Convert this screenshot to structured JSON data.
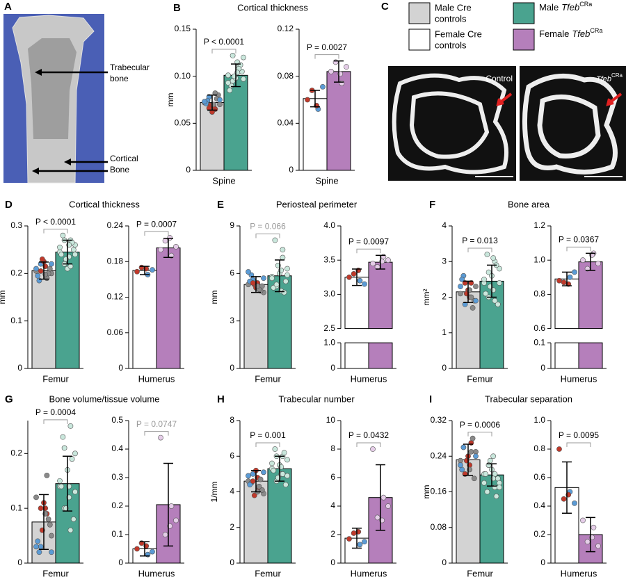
{
  "panel_a": {
    "letter": "A",
    "label_top": [
      "Trabecular",
      "bone"
    ],
    "label_bottom": [
      "Cortical",
      "Bone"
    ]
  },
  "panel_c": {
    "letter": "C",
    "legend": [
      {
        "color": "#d3d3d3",
        "lines": [
          "Male Cre",
          "controls"
        ]
      },
      {
        "color": "#4aa38f",
        "prefix": "Male",
        "gene": "Tfeb",
        "sup": "CRa"
      },
      {
        "color": "#ffffff",
        "lines": [
          "Female Cre",
          "controls"
        ]
      },
      {
        "color": "#b57fbb",
        "prefix": "Female",
        "gene": "Tfeb",
        "sup": "CRa"
      }
    ],
    "image_left_label": "Control",
    "image_right_gene": "Tfeb",
    "image_right_sup": "CRa"
  },
  "chart_data": [
    {
      "type": "bar",
      "letter": "B",
      "title": "Cortical thickness",
      "ylabel": "mm",
      "xlabel": "Spine",
      "pvalue": "P < 0.0001",
      "pvalue_color": "#000",
      "ylim": [
        0,
        0.15
      ],
      "yticks": [
        0,
        0.05,
        {
          "value": 0.1,
          "label": "0.10"
        },
        0.15
      ],
      "values": [
        0.072,
        0.101
      ],
      "errors": [
        0.008,
        0.012
      ],
      "colors": [
        "#d3d3d3",
        "#4aa38f"
      ],
      "dot_colors": [
        [
          "#8a8a8a",
          "#c0392b",
          "#5b9bd5"
        ],
        [
          "#c9e7dc"
        ]
      ],
      "points": [
        [
          0.072,
          0.065,
          0.078,
          0.07,
          0.068,
          0.074,
          0.08,
          0.062,
          0.071,
          0.076,
          0.069,
          0.073,
          0.082,
          0.066,
          0.075,
          0.07
        ],
        [
          0.101,
          0.11,
          0.095,
          0.12,
          0.115,
          0.09,
          0.105,
          0.098,
          0.085,
          0.112,
          0.1,
          0.093,
          0.108,
          0.122,
          0.097,
          0.104
        ]
      ]
    },
    {
      "type": "bar",
      "xlabel": "Spine",
      "pvalue": "P = 0.0027",
      "pvalue_color": "#000",
      "ylim": [
        0,
        0.12
      ],
      "yticks": [
        0,
        0.04,
        0.08,
        0.12
      ],
      "values": [
        0.061,
        0.084
      ],
      "errors": [
        0.007,
        0.009
      ],
      "colors": [
        "#ffffff",
        "#b57fbb"
      ],
      "dot_colors": [
        [
          "#c0392b",
          "#5b9bd5"
        ],
        [
          "#e5cde8"
        ]
      ],
      "points": [
        [
          0.06,
          0.052,
          0.068,
          0.071,
          0.055
        ],
        [
          0.084,
          0.074,
          0.092,
          0.088,
          0.082
        ]
      ]
    },
    {
      "type": "bar",
      "letter": "D",
      "title": "Cortical thickness",
      "ylabel": "mm",
      "xlabel": "Femur",
      "pvalue": "P < 0.0001",
      "pvalue_color": "#000",
      "ylim": [
        0,
        0.3
      ],
      "yticks": [
        0,
        0.1,
        0.2,
        0.3
      ],
      "values": [
        0.206,
        0.245
      ],
      "errors": [
        0.018,
        0.025
      ],
      "colors": [
        "#d3d3d3",
        "#4aa38f"
      ],
      "dot_colors": [
        [
          "#8a8a8a",
          "#c0392b",
          "#5b9bd5"
        ],
        [
          "#c9e7dc"
        ]
      ],
      "points": [
        [
          0.205,
          0.19,
          0.22,
          0.2,
          0.215,
          0.185,
          0.21,
          0.225,
          0.195,
          0.2,
          0.23,
          0.21,
          0.19,
          0.205,
          0.22,
          0.198
        ],
        [
          0.245,
          0.27,
          0.22,
          0.26,
          0.235,
          0.28,
          0.25,
          0.21,
          0.24,
          0.265,
          0.23,
          0.255,
          0.215,
          0.27,
          0.24,
          0.26
        ]
      ]
    },
    {
      "type": "bar",
      "xlabel": "Humerus",
      "pvalue": "P = 0.0007",
      "pvalue_color": "#000",
      "ylim": [
        0,
        0.24
      ],
      "yticks": [
        0,
        0.06,
        0.12,
        0.18,
        0.24
      ],
      "values": [
        0.165,
        0.203
      ],
      "errors": [
        0.007,
        0.016
      ],
      "colors": [
        "#ffffff",
        "#b57fbb"
      ],
      "dot_colors": [
        [
          "#c0392b",
          "#5b9bd5"
        ],
        [
          "#e5cde8"
        ]
      ],
      "points": [
        [
          0.163,
          0.158,
          0.17,
          0.166,
          0.168
        ],
        [
          0.2,
          0.19,
          0.215,
          0.205,
          0.22
        ]
      ]
    },
    {
      "type": "bar",
      "letter": "E",
      "title": "Periosteal perimeter",
      "ylabel": "mm",
      "xlabel": "Femur",
      "pvalue": "P = 0.066",
      "pvalue_color": "#999999",
      "ylim": [
        0,
        9
      ],
      "yticks": [
        0,
        3,
        6,
        9
      ],
      "values": [
        5.3,
        5.85
      ],
      "errors": [
        0.5,
        1.0
      ],
      "colors": [
        "#d3d3d3",
        "#4aa38f"
      ],
      "dot_colors": [
        [
          "#8a8a8a",
          "#c0392b",
          "#5b9bd5"
        ],
        [
          "#c9e7dc"
        ]
      ],
      "points": [
        [
          5.3,
          5.0,
          5.6,
          4.8,
          5.4,
          5.9,
          5.2,
          5.1,
          5.5,
          4.9,
          5.3,
          6.1,
          5.0,
          5.4,
          5.7,
          5.2
        ],
        [
          5.8,
          7.5,
          5.2,
          6.3,
          4.9,
          8.1,
          5.5,
          6.0,
          5.1,
          4.8,
          6.5,
          5.7,
          7.0,
          5.3,
          5.9,
          6.2
        ]
      ]
    },
    {
      "type": "bar",
      "broken_axis": true,
      "xlabel": "Humerus",
      "pvalue": "P = 0.0097",
      "pvalue_color": "#000",
      "ylim": [
        2.5,
        4.0
      ],
      "yticks": [
        2.5,
        {
          "value": 3.0,
          "label": "3.0"
        },
        3.5,
        {
          "value": 4.0,
          "label": "4.0"
        }
      ],
      "ylim_lower": [
        0,
        1.0
      ],
      "yticks_lower": [
        0,
        {
          "value": 1.0,
          "label": "1.0"
        }
      ],
      "values": [
        3.25,
        3.47
      ],
      "errors": [
        0.12,
        0.1
      ],
      "colors": [
        "#ffffff",
        "#b57fbb"
      ],
      "dot_colors": [
        [
          "#c0392b",
          "#5b9bd5"
        ],
        [
          "#e5cde8"
        ]
      ],
      "points": [
        [
          3.25,
          3.2,
          3.3,
          3.15,
          3.35
        ],
        [
          3.45,
          3.55,
          3.4,
          3.5,
          3.48
        ]
      ]
    },
    {
      "type": "bar",
      "letter": "F",
      "title": "Bone area",
      "ylabel": "mm²",
      "xlabel": "Femur",
      "pvalue": "P = 0.013",
      "pvalue_color": "#000",
      "ylim": [
        0,
        4
      ],
      "yticks": [
        0,
        1,
        2,
        3,
        4
      ],
      "values": [
        2.15,
        2.45
      ],
      "errors": [
        0.3,
        0.45
      ],
      "colors": [
        "#d3d3d3",
        "#4aa38f"
      ],
      "dot_colors": [
        [
          "#8a8a8a",
          "#c0392b",
          "#5b9bd5"
        ],
        [
          "#c9e7dc"
        ]
      ],
      "points": [
        [
          2.1,
          2.4,
          1.8,
          2.3,
          2.0,
          2.6,
          1.9,
          2.2,
          2.5,
          1.7,
          2.1,
          2.3,
          2.0,
          2.4,
          1.9,
          2.2
        ],
        [
          2.4,
          3.0,
          2.0,
          2.8,
          2.2,
          3.2,
          1.8,
          2.6,
          2.1,
          2.9,
          2.3,
          2.5,
          1.9,
          2.7,
          2.4,
          3.1
        ]
      ]
    },
    {
      "type": "bar",
      "broken_axis": true,
      "xlabel": "Humerus",
      "pvalue": "P = 0.0367",
      "pvalue_color": "#000",
      "ylim": [
        0.6,
        1.2
      ],
      "yticks": [
        0.6,
        0.8,
        {
          "value": 1.0,
          "label": "1.0"
        },
        1.2
      ],
      "ylim_lower": [
        0,
        0.1
      ],
      "yticks_lower": [
        0,
        0.1
      ],
      "values": [
        0.89,
        0.99
      ],
      "errors": [
        0.04,
        0.05
      ],
      "colors": [
        "#ffffff",
        "#b57fbb"
      ],
      "dot_colors": [
        [
          "#c0392b",
          "#5b9bd5"
        ],
        [
          "#e5cde8"
        ]
      ],
      "points": [
        [
          0.88,
          0.9,
          0.87,
          0.93,
          0.86
        ],
        [
          1.0,
          1.04,
          0.95,
          0.98,
          1.03
        ]
      ]
    },
    {
      "type": "bar",
      "letter": "G",
      "title": "Bone volume/tissue volume",
      "xlabel": "Femur",
      "pvalue": "P = 0.0004",
      "pvalue_color": "#000",
      "ylim": [
        0,
        0.26
      ],
      "yticks": [
        0,
        0.1,
        0.2
      ],
      "values": [
        0.075,
        0.145
      ],
      "errors": [
        0.05,
        0.05
      ],
      "colors": [
        "#d3d3d3",
        "#4aa38f"
      ],
      "dot_colors": [
        [
          "#8a8a8a",
          "#c0392b",
          "#5b9bd5"
        ],
        [
          "#c9e7dc"
        ]
      ],
      "points": [
        [
          0.12,
          0.09,
          0.03,
          0.05,
          0.1,
          0.02,
          0.07,
          0.11,
          0.04,
          0.08,
          0.06,
          0.03,
          0.16,
          0.1,
          0.02,
          0.09
        ],
        [
          0.14,
          0.25,
          0.1,
          0.2,
          0.12,
          0.23,
          0.08,
          0.17,
          0.14,
          0.19,
          0.1,
          0.15,
          0.06,
          0.21,
          0.13,
          0.14
        ]
      ]
    },
    {
      "type": "bar",
      "xlabel": "Humerus",
      "pvalue": "P = 0.0747",
      "pvalue_color": "#999999",
      "ylim": [
        0,
        0.5
      ],
      "yticks": [
        0,
        0.1,
        0.2,
        0.3,
        0.4,
        0.5
      ],
      "values": [
        0.05,
        0.205
      ],
      "errors": [
        0.025,
        0.145
      ],
      "colors": [
        "#ffffff",
        "#b57fbb"
      ],
      "dot_colors": [
        [
          "#c0392b",
          "#5b9bd5"
        ],
        [
          "#e5cde8"
        ]
      ],
      "points": [
        [
          0.05,
          0.03,
          0.07,
          0.04,
          0.06
        ],
        [
          0.44,
          0.2,
          0.1,
          0.15,
          0.13
        ]
      ]
    },
    {
      "type": "bar",
      "letter": "H",
      "title": "Trabecular number",
      "ylabel": "1/mm",
      "xlabel": "Femur",
      "pvalue": "P = 0.001",
      "pvalue_color": "#000",
      "ylim": [
        0,
        8
      ],
      "yticks": [
        0,
        2,
        4,
        6,
        8
      ],
      "values": [
        4.6,
        5.3
      ],
      "errors": [
        0.6,
        0.7
      ],
      "colors": [
        "#d3d3d3",
        "#4aa38f"
      ],
      "dot_colors": [
        [
          "#8a8a8a",
          "#c0392b",
          "#5b9bd5"
        ],
        [
          "#c9e7dc"
        ]
      ],
      "points": [
        [
          4.6,
          4.2,
          5.0,
          3.9,
          4.8,
          4.5,
          4.1,
          5.2,
          4.4,
          4.7,
          3.8,
          4.9,
          4.3,
          4.6,
          5.1,
          4.0
        ],
        [
          5.3,
          6.0,
          4.6,
          5.8,
          5.0,
          6.4,
          4.4,
          5.5,
          5.2,
          6.2,
          4.8,
          5.6,
          5.0,
          6.0,
          4.9,
          5.4
        ]
      ]
    },
    {
      "type": "bar",
      "xlabel": "Humerus",
      "pvalue": "P = 0.0432",
      "pvalue_color": "#000",
      "ylim": [
        0,
        10
      ],
      "yticks": [
        0,
        2,
        4,
        6,
        8,
        10
      ],
      "values": [
        1.75,
        4.6
      ],
      "errors": [
        0.7,
        2.3
      ],
      "colors": [
        "#ffffff",
        "#b57fbb"
      ],
      "dot_colors": [
        [
          "#c0392b",
          "#5b9bd5"
        ],
        [
          "#e5cde8"
        ]
      ],
      "points": [
        [
          1.7,
          1.3,
          2.1,
          1.5,
          2.2
        ],
        [
          8.0,
          4.6,
          3.2,
          4.0,
          3.0
        ]
      ]
    },
    {
      "type": "bar",
      "letter": "I",
      "title": "Trabecular separation",
      "ylabel": "mm",
      "xlabel": "Femur",
      "pvalue": "P = 0.0006",
      "pvalue_color": "#000",
      "ylim": [
        0,
        0.32
      ],
      "yticks": [
        0,
        0.08,
        0.16,
        0.24,
        0.32
      ],
      "values": [
        0.232,
        0.198
      ],
      "errors": [
        0.035,
        0.025
      ],
      "colors": [
        "#d3d3d3",
        "#4aa38f"
      ],
      "dot_colors": [
        [
          "#8a8a8a",
          "#c0392b",
          "#5b9bd5"
        ],
        [
          "#c9e7dc"
        ]
      ],
      "points": [
        [
          0.23,
          0.27,
          0.2,
          0.25,
          0.22,
          0.26,
          0.19,
          0.24,
          0.21,
          0.28,
          0.23,
          0.22,
          0.25,
          0.2,
          0.24,
          0.21
        ],
        [
          0.2,
          0.17,
          0.22,
          0.18,
          0.24,
          0.16,
          0.19,
          0.21,
          0.2,
          0.15,
          0.23,
          0.18,
          0.2,
          0.22,
          0.17,
          0.19
        ]
      ]
    },
    {
      "type": "bar",
      "xlabel": "Humerus",
      "pvalue": "P = 0.0095",
      "pvalue_color": "#000",
      "ylim": [
        0,
        1.0
      ],
      "yticks": [
        0,
        0.2,
        0.4,
        0.6,
        0.8,
        {
          "value": 1.0,
          "label": "1.0"
        }
      ],
      "values": [
        0.53,
        0.2
      ],
      "errors": [
        0.18,
        0.12
      ],
      "colors": [
        "#ffffff",
        "#b57fbb"
      ],
      "dot_colors": [
        [
          "#c0392b",
          "#5b9bd5"
        ],
        [
          "#e5cde8"
        ]
      ],
      "points": [
        [
          0.8,
          0.5,
          0.45,
          0.42,
          0.48
        ],
        [
          0.3,
          0.25,
          0.15,
          0.12,
          0.18
        ]
      ]
    }
  ]
}
